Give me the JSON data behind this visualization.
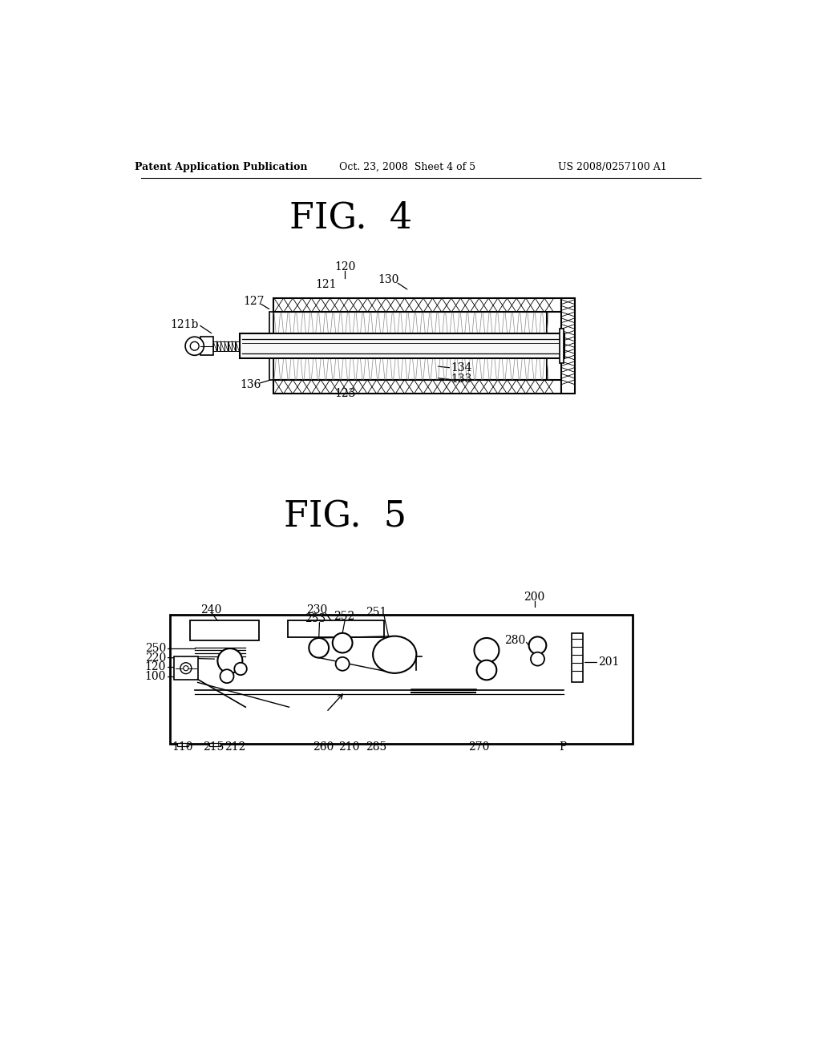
{
  "bg_color": "#ffffff",
  "text_color": "#000000",
  "header_left": "Patent Application Publication",
  "header_mid": "Oct. 23, 2008  Sheet 4 of 5",
  "header_right": "US 2008/0257100 A1",
  "fig4_title": "FIG.  4",
  "fig5_title": "FIG.  5"
}
